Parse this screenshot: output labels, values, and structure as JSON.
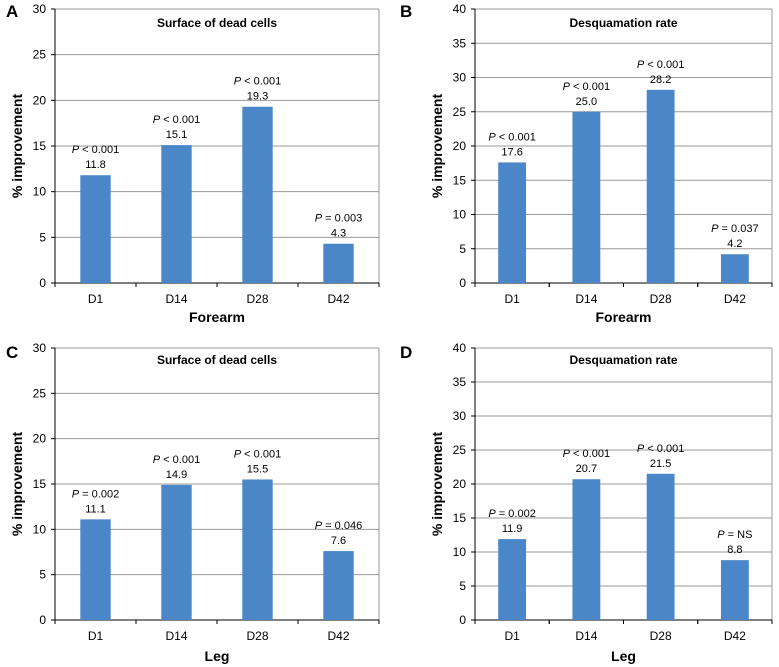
{
  "figure": {
    "ylabel": "% improvement",
    "bar_color": "#4a86c8",
    "grid_color": "#9a9a9a"
  },
  "chart_data": [
    {
      "panel": "A",
      "type": "bar",
      "title": "Surface of dead cells",
      "xlabel": "Forearm",
      "ylabel": "% improvement",
      "ylim": [
        0,
        30
      ],
      "yticks": [
        0,
        5,
        10,
        15,
        20,
        25,
        30
      ],
      "categories": [
        "D1",
        "D14",
        "D28",
        "D42"
      ],
      "values": [
        11.8,
        15.1,
        19.3,
        4.3
      ],
      "value_labels": [
        "11.8",
        "15.1",
        "19.3",
        "4.3"
      ],
      "p_values": [
        "< 0.001",
        "< 0.001",
        "< 0.001",
        "= 0.003"
      ],
      "p_letter": "P"
    },
    {
      "panel": "B",
      "type": "bar",
      "title": "Desquamation rate",
      "xlabel": "Forearm",
      "ylabel": "% improvement",
      "ylim": [
        0,
        40
      ],
      "yticks": [
        0,
        5,
        10,
        15,
        20,
        25,
        30,
        35,
        40
      ],
      "categories": [
        "D1",
        "D14",
        "D28",
        "D42"
      ],
      "values": [
        17.6,
        25.0,
        28.2,
        4.2
      ],
      "value_labels": [
        "17.6",
        "25.0",
        "28.2",
        "4.2"
      ],
      "p_values": [
        "< 0.001",
        "< 0.001",
        "< 0.001",
        "= 0.037"
      ],
      "p_letter": "P"
    },
    {
      "panel": "C",
      "type": "bar",
      "title": "Surface of dead cells",
      "xlabel": "Leg",
      "ylabel": "% improvement",
      "ylim": [
        0,
        30
      ],
      "yticks": [
        0,
        5,
        10,
        15,
        20,
        25,
        30
      ],
      "categories": [
        "D1",
        "D14",
        "D28",
        "D42"
      ],
      "values": [
        11.1,
        14.9,
        15.5,
        7.6
      ],
      "value_labels": [
        "11.1",
        "14.9",
        "15.5",
        "7.6"
      ],
      "p_values": [
        "= 0.002",
        "< 0.001",
        "< 0.001",
        "= 0.046"
      ],
      "p_letter": "P"
    },
    {
      "panel": "D",
      "type": "bar",
      "title": "Desquamation rate",
      "xlabel": "Leg",
      "ylabel": "% improvement",
      "ylim": [
        0,
        40
      ],
      "yticks": [
        0,
        5,
        10,
        15,
        20,
        25,
        30,
        35,
        40
      ],
      "categories": [
        "D1",
        "D14",
        "D28",
        "D42"
      ],
      "values": [
        11.9,
        20.7,
        21.5,
        8.8
      ],
      "value_labels": [
        "11.9",
        "20.7",
        "21.5",
        "8.8"
      ],
      "p_values": [
        "= 0.002",
        "< 0.001",
        "< 0.001",
        "= NS"
      ],
      "p_letter": "P"
    }
  ]
}
